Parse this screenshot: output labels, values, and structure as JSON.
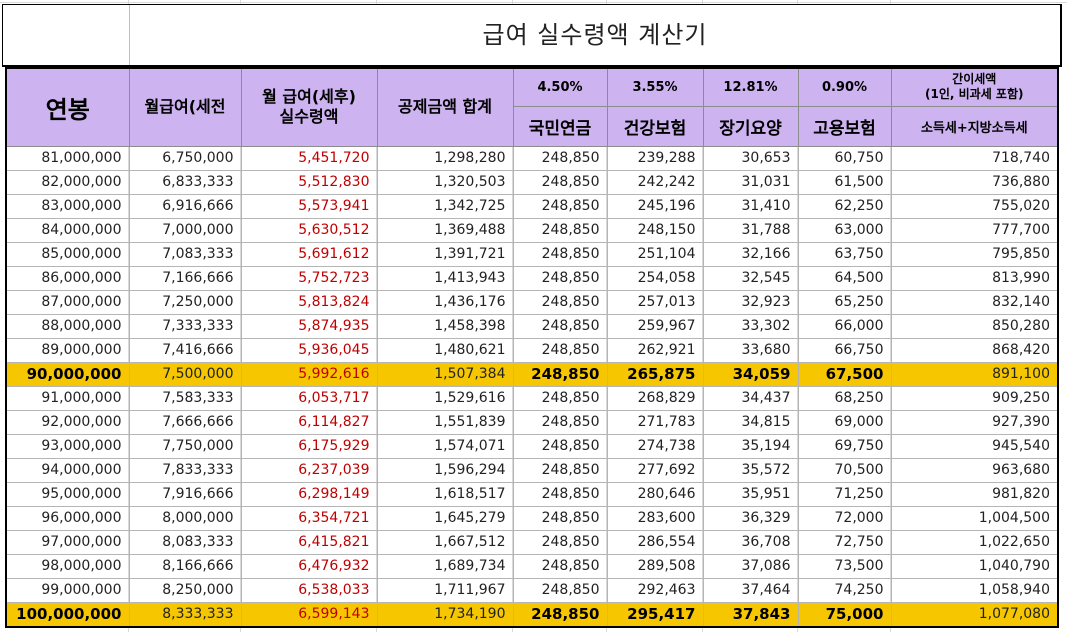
{
  "title": "급여 실수령액 계산기",
  "header": {
    "annual": "연봉",
    "monthly_pre": "월급여(세전",
    "monthly_post_line1": "월 급여(세후)",
    "monthly_post_line2": "실수령액",
    "deduction_total": "공제금액 합계",
    "rates": {
      "pension": "4.50%",
      "health": "3.55%",
      "longterm": "12.81%",
      "employment": "0.90%"
    },
    "tax_note_line1": "간이세액",
    "tax_note_line2": "(1인, 비과세 포함)",
    "labels": {
      "pension": "국민연금",
      "health": "건강보험",
      "longterm": "장기요양",
      "employment": "고용보험",
      "tax": "소득세+지방소득세"
    }
  },
  "colors": {
    "header_bg": "#cdb3ef",
    "highlight_bg": "#f6c700",
    "net_text": "#c00000"
  },
  "rows": [
    {
      "annual": "81,000,000",
      "monthly": "6,750,000",
      "net": "5,451,720",
      "deduct": "1,298,280",
      "pension": "248,850",
      "health": "239,288",
      "longterm": "30,653",
      "employment": "60,750",
      "tax": "718,740",
      "highlight": false
    },
    {
      "annual": "82,000,000",
      "monthly": "6,833,333",
      "net": "5,512,830",
      "deduct": "1,320,503",
      "pension": "248,850",
      "health": "242,242",
      "longterm": "31,031",
      "employment": "61,500",
      "tax": "736,880",
      "highlight": false
    },
    {
      "annual": "83,000,000",
      "monthly": "6,916,666",
      "net": "5,573,941",
      "deduct": "1,342,725",
      "pension": "248,850",
      "health": "245,196",
      "longterm": "31,410",
      "employment": "62,250",
      "tax": "755,020",
      "highlight": false
    },
    {
      "annual": "84,000,000",
      "monthly": "7,000,000",
      "net": "5,630,512",
      "deduct": "1,369,488",
      "pension": "248,850",
      "health": "248,150",
      "longterm": "31,788",
      "employment": "63,000",
      "tax": "777,700",
      "highlight": false
    },
    {
      "annual": "85,000,000",
      "monthly": "7,083,333",
      "net": "5,691,612",
      "deduct": "1,391,721",
      "pension": "248,850",
      "health": "251,104",
      "longterm": "32,166",
      "employment": "63,750",
      "tax": "795,850",
      "highlight": false
    },
    {
      "annual": "86,000,000",
      "monthly": "7,166,666",
      "net": "5,752,723",
      "deduct": "1,413,943",
      "pension": "248,850",
      "health": "254,058",
      "longterm": "32,545",
      "employment": "64,500",
      "tax": "813,990",
      "highlight": false
    },
    {
      "annual": "87,000,000",
      "monthly": "7,250,000",
      "net": "5,813,824",
      "deduct": "1,436,176",
      "pension": "248,850",
      "health": "257,013",
      "longterm": "32,923",
      "employment": "65,250",
      "tax": "832,140",
      "highlight": false
    },
    {
      "annual": "88,000,000",
      "monthly": "7,333,333",
      "net": "5,874,935",
      "deduct": "1,458,398",
      "pension": "248,850",
      "health": "259,967",
      "longterm": "33,302",
      "employment": "66,000",
      "tax": "850,280",
      "highlight": false
    },
    {
      "annual": "89,000,000",
      "monthly": "7,416,666",
      "net": "5,936,045",
      "deduct": "1,480,621",
      "pension": "248,850",
      "health": "262,921",
      "longterm": "33,680",
      "employment": "66,750",
      "tax": "868,420",
      "highlight": false
    },
    {
      "annual": "90,000,000",
      "monthly": "7,500,000",
      "net": "5,992,616",
      "deduct": "1,507,384",
      "pension": "248,850",
      "health": "265,875",
      "longterm": "34,059",
      "employment": "67,500",
      "tax": "891,100",
      "highlight": true
    },
    {
      "annual": "91,000,000",
      "monthly": "7,583,333",
      "net": "6,053,717",
      "deduct": "1,529,616",
      "pension": "248,850",
      "health": "268,829",
      "longterm": "34,437",
      "employment": "68,250",
      "tax": "909,250",
      "highlight": false
    },
    {
      "annual": "92,000,000",
      "monthly": "7,666,666",
      "net": "6,114,827",
      "deduct": "1,551,839",
      "pension": "248,850",
      "health": "271,783",
      "longterm": "34,815",
      "employment": "69,000",
      "tax": "927,390",
      "highlight": false
    },
    {
      "annual": "93,000,000",
      "monthly": "7,750,000",
      "net": "6,175,929",
      "deduct": "1,574,071",
      "pension": "248,850",
      "health": "274,738",
      "longterm": "35,194",
      "employment": "69,750",
      "tax": "945,540",
      "highlight": false
    },
    {
      "annual": "94,000,000",
      "monthly": "7,833,333",
      "net": "6,237,039",
      "deduct": "1,596,294",
      "pension": "248,850",
      "health": "277,692",
      "longterm": "35,572",
      "employment": "70,500",
      "tax": "963,680",
      "highlight": false
    },
    {
      "annual": "95,000,000",
      "monthly": "7,916,666",
      "net": "6,298,149",
      "deduct": "1,618,517",
      "pension": "248,850",
      "health": "280,646",
      "longterm": "35,951",
      "employment": "71,250",
      "tax": "981,820",
      "highlight": false
    },
    {
      "annual": "96,000,000",
      "monthly": "8,000,000",
      "net": "6,354,721",
      "deduct": "1,645,279",
      "pension": "248,850",
      "health": "283,600",
      "longterm": "36,329",
      "employment": "72,000",
      "tax": "1,004,500",
      "highlight": false
    },
    {
      "annual": "97,000,000",
      "monthly": "8,083,333",
      "net": "6,415,821",
      "deduct": "1,667,512",
      "pension": "248,850",
      "health": "286,554",
      "longterm": "36,708",
      "employment": "72,750",
      "tax": "1,022,650",
      "highlight": false
    },
    {
      "annual": "98,000,000",
      "monthly": "8,166,666",
      "net": "6,476,932",
      "deduct": "1,689,734",
      "pension": "248,850",
      "health": "289,508",
      "longterm": "37,086",
      "employment": "73,500",
      "tax": "1,040,790",
      "highlight": false
    },
    {
      "annual": "99,000,000",
      "monthly": "8,250,000",
      "net": "6,538,033",
      "deduct": "1,711,967",
      "pension": "248,850",
      "health": "292,463",
      "longterm": "37,464",
      "employment": "74,250",
      "tax": "1,058,940",
      "highlight": false
    },
    {
      "annual": "100,000,000",
      "monthly": "8,333,333",
      "net": "6,599,143",
      "deduct": "1,734,190",
      "pension": "248,850",
      "health": "295,417",
      "longterm": "37,843",
      "employment": "75,000",
      "tax": "1,077,080",
      "highlight": true
    }
  ]
}
